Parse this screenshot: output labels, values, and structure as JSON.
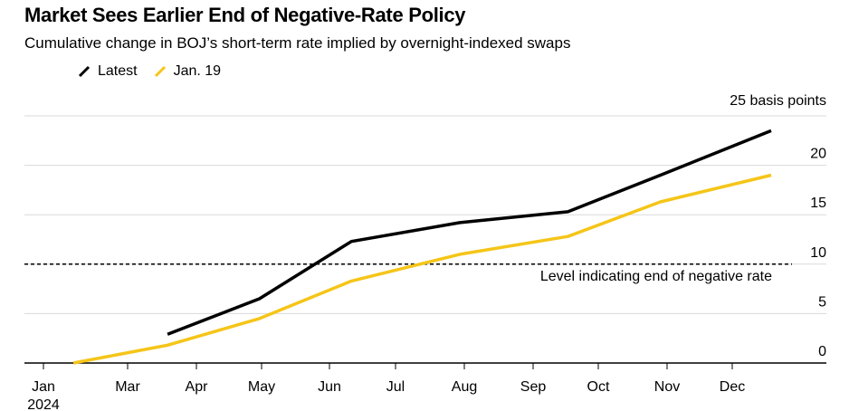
{
  "title": "Market Sees Earlier End of Negative-Rate Policy",
  "subtitle": "Cumulative change in BOJ’s short-term rate implied by overnight-indexed swaps",
  "colors": {
    "latest": "#000000",
    "jan19": "#f5c518",
    "grid": "#d9d9d9",
    "axis": "#000000"
  },
  "chart_data": {
    "type": "line",
    "ylabel": "",
    "yunit_label": "25 basis points",
    "ylim": [
      0,
      25
    ],
    "yticks": [
      0,
      5,
      10,
      15,
      20,
      25
    ],
    "ytick_labels": [
      "0",
      "5",
      "10",
      "15",
      "20",
      ""
    ],
    "x_tick_labels": [
      {
        "label": "Jan",
        "month": 1
      },
      {
        "label": "Mar",
        "month": 3
      },
      {
        "label": "Apr",
        "month": 4
      },
      {
        "label": "May",
        "month": 5
      },
      {
        "label": "Jun",
        "month": 6
      },
      {
        "label": "Jul",
        "month": 7
      },
      {
        "label": "Aug",
        "month": 8
      },
      {
        "label": "Sep",
        "month": 9
      },
      {
        "label": "Oct",
        "month": 10
      },
      {
        "label": "Nov",
        "month": 11
      },
      {
        "label": "Dec",
        "month": 12
      }
    ],
    "x_year_label": "2024",
    "grid": true,
    "legend_position": "top-left",
    "series": [
      {
        "name": "Latest",
        "color_key": "latest",
        "points": [
          {
            "x": "2024-03-19",
            "y": 2.9
          },
          {
            "x": "2024-04-30",
            "y": 6.5
          },
          {
            "x": "2024-06-11",
            "y": 12.3
          },
          {
            "x": "2024-07-30",
            "y": 14.2
          },
          {
            "x": "2024-09-17",
            "y": 15.3
          },
          {
            "x": "2024-10-29",
            "y": 19.0
          },
          {
            "x": "2024-12-19",
            "y": 23.5
          }
        ]
      },
      {
        "name": "Jan. 19",
        "color_key": "jan19",
        "points": [
          {
            "x": "2024-01-23",
            "y": 0.0
          },
          {
            "x": "2024-03-19",
            "y": 1.8
          },
          {
            "x": "2024-04-30",
            "y": 4.5
          },
          {
            "x": "2024-06-11",
            "y": 8.3
          },
          {
            "x": "2024-07-30",
            "y": 11.0
          },
          {
            "x": "2024-09-17",
            "y": 12.8
          },
          {
            "x": "2024-10-29",
            "y": 16.3
          },
          {
            "x": "2024-12-19",
            "y": 19.0
          }
        ]
      }
    ],
    "reference_line": {
      "y": 10,
      "label": "Level indicating end of negative rate",
      "style": "dashed"
    }
  }
}
